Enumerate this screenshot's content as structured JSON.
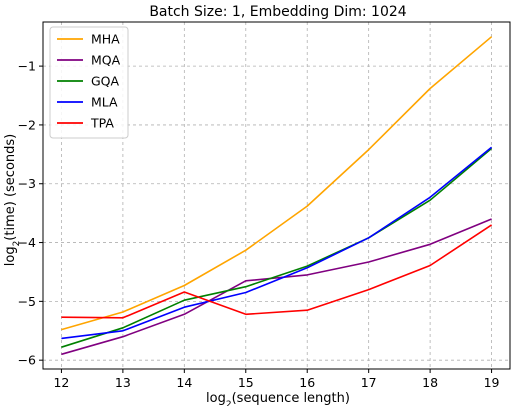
{
  "chart_data": {
    "type": "line",
    "title": "Batch Size: 1, Embedding Dim: 1024",
    "xlabel_prefix": "log",
    "xlabel_sub": "2",
    "xlabel_suffix": "(sequence length)",
    "ylabel_prefix": "log",
    "ylabel_sub": "2",
    "ylabel_suffix": "(time) (seconds)",
    "x": [
      12,
      13,
      14,
      15,
      16,
      17,
      18,
      19
    ],
    "xlim": [
      11.7,
      19.3
    ],
    "ylim": [
      -6.15,
      -0.25
    ],
    "xticks": [
      "12",
      "13",
      "14",
      "15",
      "16",
      "17",
      "18",
      "19"
    ],
    "yticks": [
      -6,
      -5,
      -4,
      -3,
      -2,
      -1
    ],
    "ytick_labels": [
      "−6",
      "−5",
      "−4",
      "−3",
      "−2",
      "−1"
    ],
    "grid": true,
    "legend_position": "top-left",
    "series": [
      {
        "name": "MHA",
        "color": "#ffa500",
        "values": [
          -5.48,
          -5.18,
          -4.73,
          -4.13,
          -3.38,
          -2.42,
          -1.38,
          -0.5
        ]
      },
      {
        "name": "MQA",
        "color": "#800080",
        "values": [
          -5.9,
          -5.6,
          -5.22,
          -4.65,
          -4.55,
          -4.33,
          -4.03,
          -3.6
        ]
      },
      {
        "name": "GQA",
        "color": "#008000",
        "values": [
          -5.78,
          -5.45,
          -4.98,
          -4.75,
          -4.4,
          -3.92,
          -3.28,
          -2.4
        ]
      },
      {
        "name": "MLA",
        "color": "#0000ff",
        "values": [
          -5.63,
          -5.5,
          -5.1,
          -4.85,
          -4.43,
          -3.92,
          -3.23,
          -2.38
        ]
      },
      {
        "name": "TPA",
        "color": "#ff0000",
        "values": [
          -5.27,
          -5.28,
          -4.84,
          -5.22,
          -5.15,
          -4.8,
          -4.39,
          -3.7
        ]
      }
    ]
  }
}
